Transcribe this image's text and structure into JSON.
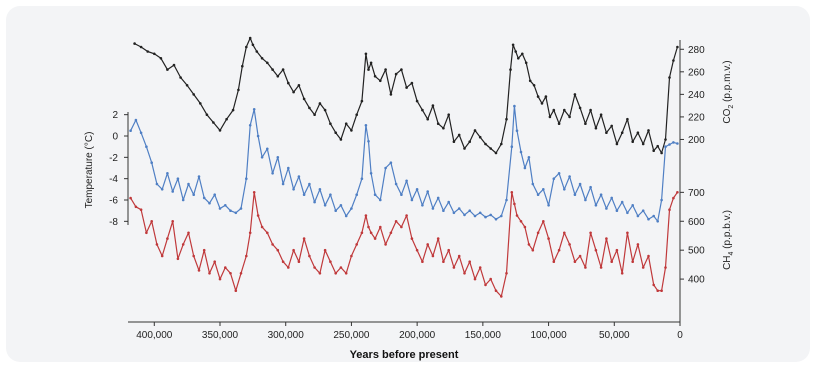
{
  "chart_data": {
    "type": "line",
    "xlabel": "Years before present",
    "x_ticks": [
      "400,000",
      "350,000",
      "300,000",
      "250,000",
      "200,000",
      "150,000",
      "100,000",
      "50,000",
      "0"
    ],
    "x_tick_values": [
      400000,
      350000,
      300000,
      250000,
      200000,
      150000,
      100000,
      50000,
      0
    ],
    "xlim": [
      420000,
      0
    ],
    "series": [
      {
        "id": "co2",
        "color": "#222222",
        "axis": "right-top",
        "ylabel_main": "CO",
        "ylabel_sub": "2",
        "ylabel_rest": " (p.p.m.v.)",
        "y_ticks": [
          "280",
          "260",
          "240",
          "220",
          "200"
        ],
        "y_tick_values": [
          280,
          260,
          240,
          220,
          200
        ],
        "ylim": [
          180,
          290
        ],
        "x": [
          415000,
          410000,
          405000,
          400000,
          395000,
          390000,
          385000,
          380000,
          375000,
          370000,
          365000,
          360000,
          355000,
          350000,
          345000,
          340000,
          336000,
          333000,
          330000,
          327000,
          325000,
          322000,
          318000,
          314000,
          310000,
          306000,
          302000,
          298000,
          294000,
          290000,
          286000,
          282000,
          278000,
          274000,
          270000,
          266000,
          262000,
          258000,
          254000,
          250000,
          246000,
          242000,
          239000,
          237000,
          235000,
          232000,
          228000,
          224000,
          220000,
          216000,
          212000,
          208000,
          204000,
          200000,
          196000,
          192000,
          188000,
          184000,
          180000,
          176000,
          172000,
          168000,
          164000,
          160000,
          156000,
          152000,
          148000,
          144000,
          140000,
          136000,
          132000,
          129000,
          127000,
          125000,
          123000,
          120000,
          117000,
          114000,
          111000,
          108000,
          105000,
          102000,
          99000,
          96000,
          92000,
          88000,
          84000,
          80000,
          76000,
          72000,
          68000,
          64000,
          60000,
          56000,
          52000,
          48000,
          44000,
          40000,
          36000,
          32000,
          28000,
          24000,
          20000,
          17000,
          14000,
          11000,
          8000,
          5000,
          2000
        ],
        "y": [
          285,
          282,
          278,
          276,
          272,
          262,
          266,
          255,
          248,
          240,
          232,
          222,
          215,
          208,
          218,
          226,
          244,
          265,
          282,
          290,
          284,
          278,
          272,
          268,
          262,
          256,
          262,
          250,
          242,
          248,
          236,
          228,
          222,
          232,
          226,
          214,
          206,
          200,
          214,
          208,
          222,
          234,
          276,
          262,
          268,
          256,
          252,
          262,
          240,
          258,
          262,
          246,
          250,
          234,
          226,
          218,
          230,
          214,
          210,
          222,
          198,
          204,
          192,
          198,
          208,
          202,
          196,
          192,
          188,
          196,
          218,
          262,
          284,
          278,
          272,
          276,
          268,
          252,
          248,
          238,
          232,
          238,
          220,
          226,
          214,
          226,
          220,
          240,
          228,
          214,
          226,
          210,
          222,
          206,
          212,
          196,
          206,
          218,
          198,
          206,
          196,
          208,
          190,
          194,
          188,
          200,
          255,
          270,
          282
        ]
      },
      {
        "id": "temperature",
        "color": "#4f7fc4",
        "axis": "left",
        "ylabel": "Temperature (°C)",
        "y_ticks": [
          "2",
          "0",
          "-2",
          "-4",
          "-6",
          "-8"
        ],
        "y_tick_values": [
          2,
          0,
          -2,
          -4,
          -6,
          -8
        ],
        "ylim": [
          -9,
          3
        ],
        "x": [
          418000,
          414000,
          410000,
          406000,
          402000,
          398000,
          394000,
          390000,
          386000,
          382000,
          378000,
          374000,
          370000,
          366000,
          362000,
          358000,
          354000,
          350000,
          346000,
          342000,
          338000,
          334000,
          330000,
          327000,
          324000,
          321000,
          318000,
          314000,
          310000,
          306000,
          302000,
          298000,
          294000,
          290000,
          286000,
          282000,
          278000,
          274000,
          270000,
          266000,
          262000,
          258000,
          254000,
          250000,
          246000,
          242000,
          239000,
          237000,
          235000,
          232000,
          228000,
          224000,
          220000,
          216000,
          212000,
          208000,
          204000,
          200000,
          196000,
          192000,
          188000,
          184000,
          180000,
          176000,
          172000,
          168000,
          164000,
          160000,
          156000,
          152000,
          148000,
          144000,
          140000,
          136000,
          132000,
          128000,
          126000,
          124000,
          121000,
          118000,
          115000,
          112000,
          108000,
          104000,
          100000,
          96000,
          92000,
          88000,
          84000,
          80000,
          76000,
          72000,
          68000,
          64000,
          60000,
          56000,
          52000,
          48000,
          44000,
          40000,
          36000,
          32000,
          28000,
          24000,
          20000,
          17000,
          14000,
          11000,
          8000,
          5000,
          2000
        ],
        "y": [
          0.5,
          1.5,
          0.3,
          -1.0,
          -2.5,
          -4.5,
          -5.0,
          -3.5,
          -5.2,
          -4.0,
          -6.0,
          -4.5,
          -5.5,
          -3.8,
          -5.8,
          -6.3,
          -5.5,
          -6.8,
          -6.5,
          -7.0,
          -7.2,
          -6.8,
          -4.0,
          1.0,
          2.5,
          0.0,
          -2.0,
          -1.2,
          -3.5,
          -2.0,
          -4.5,
          -3.0,
          -5.0,
          -3.8,
          -5.5,
          -4.5,
          -6.2,
          -5.0,
          -6.5,
          -5.5,
          -7.0,
          -6.5,
          -7.5,
          -6.8,
          -5.5,
          -4.0,
          1.0,
          -0.5,
          -3.5,
          -5.5,
          -6.0,
          -3.0,
          -2.5,
          -4.5,
          -5.5,
          -4.2,
          -6.0,
          -5.0,
          -6.5,
          -5.2,
          -6.8,
          -5.8,
          -7.0,
          -6.2,
          -7.2,
          -6.8,
          -7.4,
          -7.0,
          -7.5,
          -7.2,
          -7.6,
          -7.4,
          -7.8,
          -7.5,
          -6.0,
          -1.0,
          2.8,
          0.5,
          -1.5,
          -3.0,
          -2.0,
          -4.5,
          -5.5,
          -5.0,
          -6.5,
          -4.0,
          -3.5,
          -5.0,
          -3.8,
          -5.5,
          -4.5,
          -6.0,
          -4.8,
          -6.5,
          -5.5,
          -6.8,
          -5.8,
          -7.0,
          -6.2,
          -7.2,
          -6.5,
          -7.5,
          -7.0,
          -7.8,
          -7.5,
          -8.0,
          -6.0,
          -1.0,
          -0.8,
          -0.6,
          -0.7
        ]
      },
      {
        "id": "ch4",
        "color": "#c0393b",
        "axis": "right-bottom",
        "ylabel_main": "CH",
        "ylabel_sub": "4",
        "ylabel_rest": " (p.p.b.v.)",
        "y_ticks": [
          "700",
          "600",
          "500",
          "400"
        ],
        "y_tick_values": [
          700,
          600,
          500,
          400
        ],
        "ylim": [
          300,
          760
        ],
        "x": [
          418000,
          414000,
          410000,
          406000,
          402000,
          398000,
          394000,
          390000,
          386000,
          382000,
          378000,
          374000,
          370000,
          366000,
          362000,
          358000,
          354000,
          350000,
          346000,
          342000,
          338000,
          334000,
          330000,
          327000,
          324000,
          321000,
          318000,
          314000,
          310000,
          306000,
          302000,
          298000,
          294000,
          290000,
          286000,
          282000,
          278000,
          274000,
          270000,
          266000,
          262000,
          258000,
          254000,
          250000,
          246000,
          242000,
          239000,
          237000,
          235000,
          232000,
          228000,
          224000,
          220000,
          216000,
          212000,
          208000,
          204000,
          200000,
          196000,
          192000,
          188000,
          184000,
          180000,
          176000,
          172000,
          168000,
          164000,
          160000,
          156000,
          152000,
          148000,
          144000,
          140000,
          136000,
          132000,
          128000,
          126000,
          124000,
          121000,
          118000,
          115000,
          112000,
          108000,
          104000,
          100000,
          96000,
          92000,
          88000,
          84000,
          80000,
          76000,
          72000,
          68000,
          64000,
          60000,
          56000,
          52000,
          48000,
          44000,
          40000,
          36000,
          32000,
          28000,
          24000,
          20000,
          17000,
          14000,
          11000,
          8000,
          5000,
          2000
        ],
        "y": [
          680,
          650,
          640,
          560,
          600,
          520,
          480,
          540,
          600,
          470,
          520,
          560,
          480,
          430,
          500,
          420,
          460,
          400,
          440,
          420,
          360,
          420,
          480,
          560,
          700,
          620,
          580,
          560,
          520,
          500,
          460,
          440,
          500,
          460,
          540,
          480,
          440,
          420,
          500,
          460,
          420,
          440,
          420,
          480,
          520,
          560,
          620,
          580,
          560,
          540,
          580,
          520,
          560,
          600,
          580,
          620,
          540,
          500,
          460,
          520,
          480,
          540,
          460,
          500,
          440,
          480,
          420,
          460,
          400,
          440,
          380,
          400,
          360,
          340,
          420,
          700,
          660,
          620,
          600,
          580,
          520,
          500,
          560,
          600,
          540,
          460,
          500,
          560,
          520,
          460,
          480,
          440,
          560,
          500,
          440,
          540,
          460,
          500,
          420,
          560,
          460,
          520,
          440,
          480,
          380,
          360,
          360,
          440,
          640,
          680,
          700
        ]
      }
    ]
  }
}
